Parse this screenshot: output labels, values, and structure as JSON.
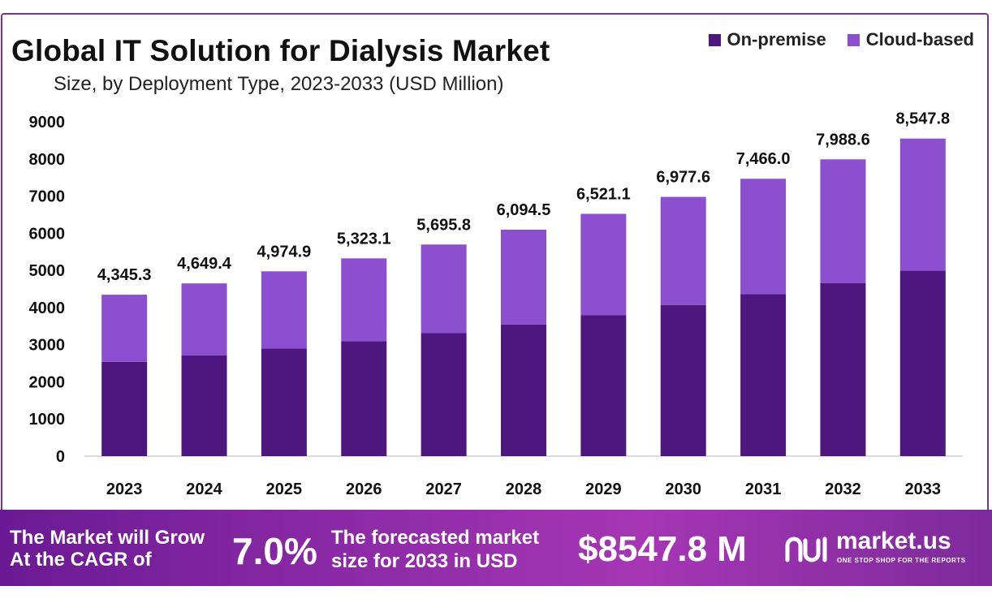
{
  "chart_data": {
    "type": "bar",
    "stacked": true,
    "title": "Global IT Solution for Dialysis Market",
    "subtitle": "Size, by Deployment Type, 2023-2033 (USD Million)",
    "categories": [
      "2023",
      "2024",
      "2025",
      "2026",
      "2027",
      "2028",
      "2029",
      "2030",
      "2031",
      "2032",
      "2033"
    ],
    "series": [
      {
        "name": "On-premise",
        "color": "#4e1780",
        "values": [
          2540,
          2710,
          2900,
          3090,
          3310,
          3540,
          3790,
          4070,
          4360,
          4660,
          4990
        ]
      },
      {
        "name": "Cloud-based",
        "color": "#8c4fcf",
        "values": [
          1805.3,
          1939.4,
          2074.9,
          2233.1,
          2385.8,
          2554.5,
          2731.1,
          2907.6,
          3106.0,
          3328.6,
          3557.8
        ]
      }
    ],
    "totals": [
      "4,345.3",
      "4,649.4",
      "4,974.9",
      "5,323.1",
      "5,695.8",
      "6,094.5",
      "6,521.1",
      "6,977.6",
      "7,466.0",
      "7,988.6",
      "8,547.8"
    ],
    "total_values": [
      4345.3,
      4649.4,
      4974.9,
      5323.1,
      5695.8,
      6094.5,
      6521.1,
      6977.6,
      7466.0,
      7988.6,
      8547.8
    ],
    "yticks": [
      "0",
      "1000",
      "2000",
      "3000",
      "4000",
      "5000",
      "6000",
      "7000",
      "8000",
      "9000"
    ],
    "ylim": [
      0,
      9000
    ],
    "legend_position": "top-right",
    "grid": false
  },
  "legend": {
    "on_premise": "On-premise",
    "cloud_based": "Cloud-based",
    "on_premise_color": "#4e1780",
    "cloud_based_color": "#8c4fcf"
  },
  "banner": {
    "grow_line1": "The Market will Grow",
    "grow_line2": "At the CAGR of",
    "cagr": "7.0%",
    "forecast_line1": "The forecasted market",
    "forecast_line2": "size for 2033 in USD",
    "market_size": "$8547.8 M",
    "brand": "market.us",
    "tagline": "ONE STOP SHOP FOR THE REPORTS"
  }
}
